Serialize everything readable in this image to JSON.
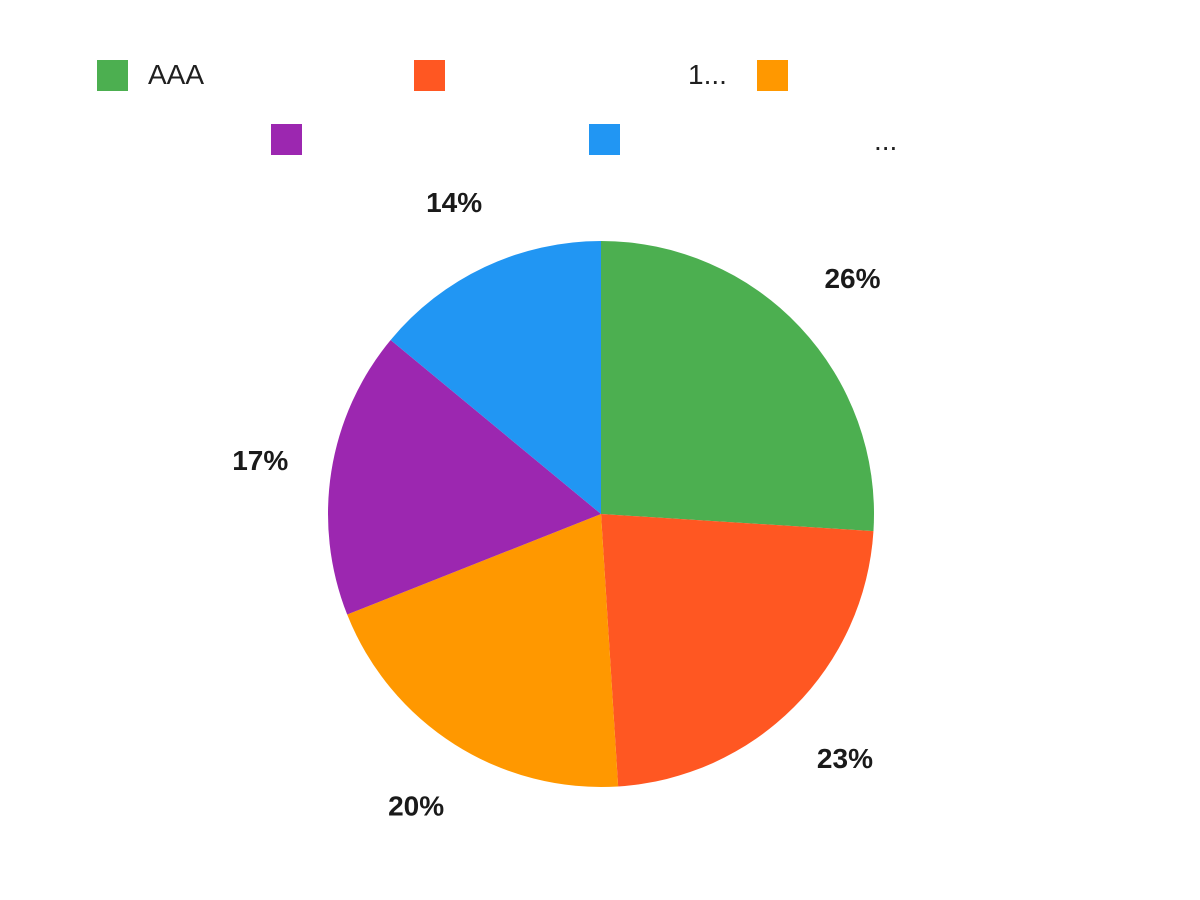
{
  "chart_data": {
    "type": "pie",
    "legend_position": "top",
    "slices": [
      {
        "name": "AAA",
        "value": 26,
        "label": "26%",
        "color": "#4CAF50"
      },
      {
        "name": "",
        "value": 23,
        "label": "23%",
        "color": "#FF5722"
      },
      {
        "name": "",
        "value": 20,
        "label": "20%",
        "color": "#FF9800"
      },
      {
        "name": "",
        "value": 17,
        "label": "17%",
        "color": "#9C27B0"
      },
      {
        "name": "",
        "value": 14,
        "label": "14%",
        "color": "#2196F3"
      }
    ]
  },
  "legend": {
    "row1": [
      {
        "color": "#4CAF50",
        "text": "AAA"
      },
      {
        "color": "#FF5722",
        "text": "1..."
      },
      {
        "color": "#FF9800",
        "text": ""
      }
    ],
    "row2": [
      {
        "color": "#9C27B0",
        "text": ""
      },
      {
        "color": "#2196F3",
        "text": "..."
      }
    ]
  }
}
